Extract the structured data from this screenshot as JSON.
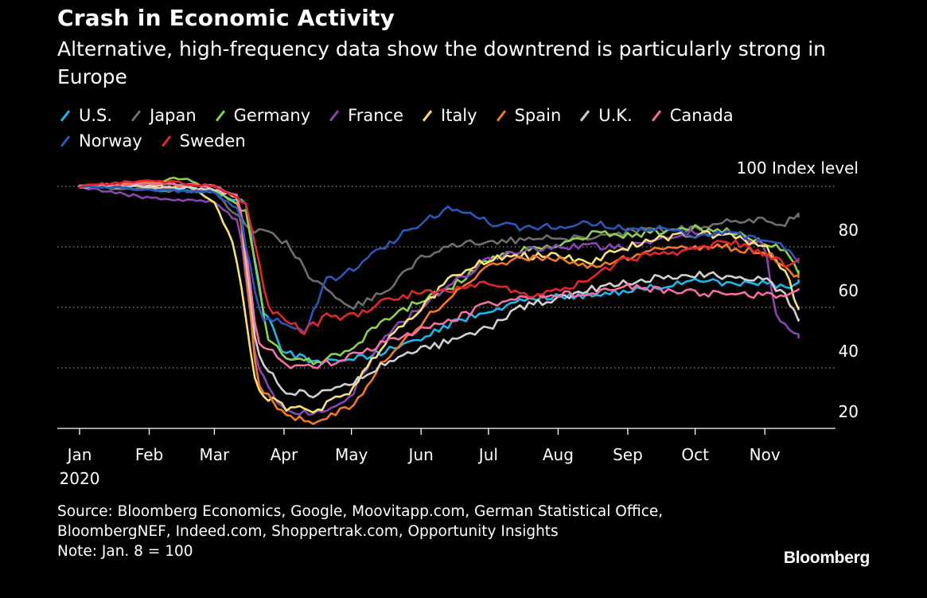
{
  "header": {
    "title": "Crash in Economic Activity",
    "subtitle": "Alternative, high-frequency data show the downtrend is particularly strong in Europe"
  },
  "footer": {
    "source_line1": "Source: Bloomberg Economics, Google, Moovitapp.com, German Statistical Office,",
    "source_line2": "BloombergNEF, Indeed.com, Shoppertrak.com, Opportunity Insights",
    "note": "Note: Jan. 8 = 100",
    "brand": "Bloomberg"
  },
  "chart_data": {
    "type": "line",
    "title": "Crash in Economic Activity",
    "subtitle": "Alternative, high-frequency data show the downtrend is particularly strong in Europe",
    "y_unit_label": "100 Index level",
    "ylim": [
      16,
      103
    ],
    "y_ticks": [
      100,
      80,
      60,
      40,
      20
    ],
    "y_tick_labels": [
      "100 Index level",
      "80",
      "60",
      "40",
      "20"
    ],
    "x_ticks": [
      "2020-01-01",
      "2020-02-01",
      "2020-03-01",
      "2020-04-01",
      "2020-05-01",
      "2020-06-01",
      "2020-07-01",
      "2020-08-01",
      "2020-09-01",
      "2020-10-01",
      "2020-11-01"
    ],
    "x_tick_labels": [
      "Jan",
      "Feb",
      "Mar",
      "Apr",
      "May",
      "Jun",
      "Jul",
      "Aug",
      "Sep",
      "Oct",
      "Nov"
    ],
    "x_year_label": "2020",
    "xlim": [
      "2020-01-01",
      "2020-11-19"
    ],
    "grid": "horizontal dotted",
    "legend_position": "top",
    "series": [
      {
        "name": "U.S.",
        "color": "#1fb7ea",
        "x": [
          "2020-01-01",
          "2020-02-01",
          "2020-03-01",
          "2020-03-15",
          "2020-03-22",
          "2020-04-01",
          "2020-04-15",
          "2020-05-01",
          "2020-05-15",
          "2020-06-01",
          "2020-06-15",
          "2020-07-01",
          "2020-07-15",
          "2020-08-01",
          "2020-08-15",
          "2020-09-01",
          "2020-09-15",
          "2020-10-01",
          "2020-10-15",
          "2020-11-01",
          "2020-11-10",
          "2020-11-16"
        ],
        "y": [
          100,
          99,
          98,
          94,
          60,
          45,
          42,
          43,
          45,
          50,
          55,
          59,
          62,
          64,
          64,
          65,
          67,
          69,
          68,
          68,
          66,
          69
        ]
      },
      {
        "name": "Japan",
        "color": "#6e6e6e",
        "x": [
          "2020-01-01",
          "2020-02-01",
          "2020-03-01",
          "2020-03-15",
          "2020-04-01",
          "2020-04-15",
          "2020-05-01",
          "2020-05-15",
          "2020-06-01",
          "2020-06-15",
          "2020-07-01",
          "2020-07-15",
          "2020-08-01",
          "2020-08-15",
          "2020-09-01",
          "2020-09-15",
          "2020-10-01",
          "2020-10-15",
          "2020-11-01",
          "2020-11-10",
          "2020-11-16"
        ],
        "y": [
          100,
          99,
          98,
          87,
          82,
          68,
          60,
          65,
          76,
          80,
          82,
          82,
          83,
          83,
          85,
          86,
          86,
          88,
          89,
          88,
          90
        ]
      },
      {
        "name": "Germany",
        "color": "#8bd04f",
        "x": [
          "2020-01-01",
          "2020-02-01",
          "2020-02-15",
          "2020-03-01",
          "2020-03-15",
          "2020-03-25",
          "2020-04-01",
          "2020-04-15",
          "2020-05-01",
          "2020-05-15",
          "2020-06-01",
          "2020-06-15",
          "2020-07-01",
          "2020-07-15",
          "2020-08-01",
          "2020-08-15",
          "2020-09-01",
          "2020-09-15",
          "2020-10-01",
          "2020-10-15",
          "2020-11-01",
          "2020-11-10",
          "2020-11-16"
        ],
        "y": [
          100,
          101,
          103,
          99,
          92,
          50,
          44,
          42,
          46,
          56,
          62,
          67,
          76,
          79,
          81,
          84,
          84,
          85,
          86,
          85,
          82,
          78,
          72
        ]
      },
      {
        "name": "France",
        "color": "#8b44b4",
        "x": [
          "2020-01-01",
          "2020-02-01",
          "2020-03-01",
          "2020-03-12",
          "2020-03-20",
          "2020-04-01",
          "2020-04-15",
          "2020-05-01",
          "2020-05-15",
          "2020-06-01",
          "2020-06-15",
          "2020-07-01",
          "2020-07-15",
          "2020-08-01",
          "2020-08-15",
          "2020-09-01",
          "2020-09-15",
          "2020-10-01",
          "2020-10-15",
          "2020-11-01",
          "2020-11-06",
          "2020-11-16"
        ],
        "y": [
          100,
          96,
          95,
          88,
          40,
          26,
          25,
          31,
          50,
          60,
          68,
          76,
          79,
          80,
          80,
          80,
          83,
          85,
          85,
          80,
          58,
          50
        ]
      },
      {
        "name": "Italy",
        "color": "#f5e07a",
        "x": [
          "2020-01-01",
          "2020-02-01",
          "2020-02-20",
          "2020-03-01",
          "2020-03-10",
          "2020-03-20",
          "2020-04-01",
          "2020-04-15",
          "2020-05-01",
          "2020-05-15",
          "2020-06-01",
          "2020-06-15",
          "2020-07-01",
          "2020-07-15",
          "2020-08-01",
          "2020-08-15",
          "2020-09-01",
          "2020-09-15",
          "2020-10-01",
          "2020-10-15",
          "2020-11-01",
          "2020-11-10",
          "2020-11-16"
        ],
        "y": [
          100,
          100,
          100,
          95,
          80,
          32,
          27,
          26,
          32,
          48,
          60,
          70,
          76,
          77,
          77,
          75,
          80,
          83,
          84,
          84,
          80,
          72,
          60
        ]
      },
      {
        "name": "Spain",
        "color": "#f27a26",
        "x": [
          "2020-01-01",
          "2020-02-01",
          "2020-03-01",
          "2020-03-12",
          "2020-03-20",
          "2020-04-01",
          "2020-04-15",
          "2020-05-01",
          "2020-05-15",
          "2020-06-01",
          "2020-06-15",
          "2020-07-01",
          "2020-07-15",
          "2020-08-01",
          "2020-08-15",
          "2020-09-01",
          "2020-09-15",
          "2020-10-01",
          "2020-10-15",
          "2020-11-01",
          "2020-11-10",
          "2020-11-16"
        ],
        "y": [
          100,
          101,
          100,
          96,
          35,
          24,
          22,
          27,
          42,
          55,
          64,
          73,
          76,
          76,
          74,
          76,
          79,
          80,
          80,
          78,
          74,
          70
        ]
      },
      {
        "name": "U.K.",
        "color": "#d0d0d0",
        "x": [
          "2020-01-01",
          "2020-02-01",
          "2020-03-01",
          "2020-03-12",
          "2020-03-20",
          "2020-04-01",
          "2020-04-15",
          "2020-05-01",
          "2020-05-15",
          "2020-06-01",
          "2020-06-15",
          "2020-07-01",
          "2020-07-15",
          "2020-08-01",
          "2020-08-15",
          "2020-09-01",
          "2020-09-15",
          "2020-10-01",
          "2020-10-15",
          "2020-11-01",
          "2020-11-10",
          "2020-11-16"
        ],
        "y": [
          100,
          100,
          99,
          96,
          45,
          32,
          31,
          35,
          41,
          46,
          49,
          53,
          60,
          63,
          66,
          68,
          70,
          71,
          70,
          69,
          64,
          56
        ]
      },
      {
        "name": "Canada",
        "color": "#f46fa2",
        "x": [
          "2020-01-01",
          "2020-02-01",
          "2020-03-01",
          "2020-03-12",
          "2020-03-20",
          "2020-04-01",
          "2020-04-15",
          "2020-05-01",
          "2020-05-15",
          "2020-06-01",
          "2020-06-15",
          "2020-07-01",
          "2020-07-15",
          "2020-08-01",
          "2020-08-15",
          "2020-09-01",
          "2020-09-15",
          "2020-10-01",
          "2020-10-15",
          "2020-11-01",
          "2020-11-10",
          "2020-11-16"
        ],
        "y": [
          100,
          101,
          100,
          97,
          50,
          41,
          40,
          44,
          48,
          53,
          56,
          61,
          63,
          64,
          65,
          67,
          66,
          65,
          64,
          64,
          63,
          66
        ]
      },
      {
        "name": "Norway",
        "color": "#2b57b8",
        "x": [
          "2020-01-01",
          "2020-02-01",
          "2020-03-01",
          "2020-03-12",
          "2020-03-22",
          "2020-04-01",
          "2020-04-10",
          "2020-04-20",
          "2020-05-01",
          "2020-05-15",
          "2020-06-01",
          "2020-06-15",
          "2020-07-01",
          "2020-07-15",
          "2020-08-01",
          "2020-08-15",
          "2020-09-01",
          "2020-09-15",
          "2020-10-01",
          "2020-10-15",
          "2020-11-01",
          "2020-11-10",
          "2020-11-16"
        ],
        "y": [
          100,
          99,
          98,
          92,
          55,
          56,
          52,
          69,
          72,
          80,
          88,
          93,
          88,
          86,
          87,
          88,
          86,
          86,
          84,
          85,
          82,
          80,
          76
        ]
      },
      {
        "name": "Sweden",
        "color": "#e2262f",
        "x": [
          "2020-01-01",
          "2020-02-01",
          "2020-03-01",
          "2020-03-15",
          "2020-03-25",
          "2020-04-01",
          "2020-04-10",
          "2020-04-20",
          "2020-05-01",
          "2020-05-15",
          "2020-06-01",
          "2020-06-15",
          "2020-07-01",
          "2020-07-15",
          "2020-08-01",
          "2020-08-15",
          "2020-09-01",
          "2020-09-15",
          "2020-10-01",
          "2020-10-15",
          "2020-11-01",
          "2020-11-10",
          "2020-11-16"
        ],
        "y": [
          100,
          102,
          100,
          95,
          60,
          56,
          52,
          57,
          57,
          62,
          65,
          66,
          68,
          64,
          65,
          70,
          76,
          78,
          79,
          82,
          78,
          74,
          76
        ]
      }
    ]
  }
}
